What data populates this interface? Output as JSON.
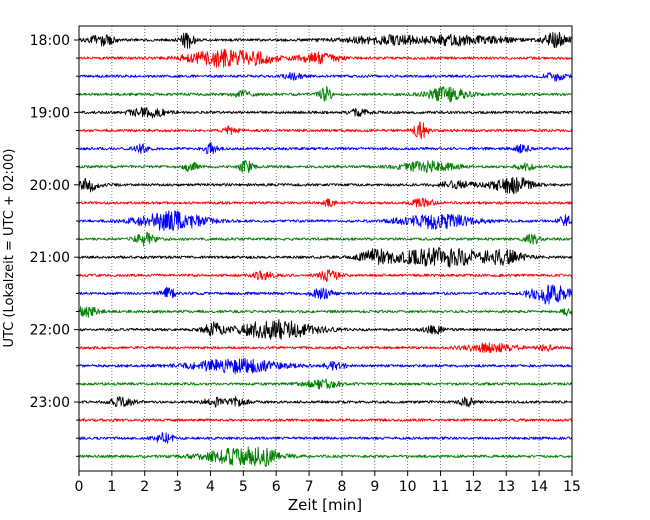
{
  "chart_data": {
    "type": "line",
    "title": "",
    "xlabel": "Zeit  [min]",
    "ylabel": "UTC (Lokalzeit = UTC + 02:00)",
    "xlim": [
      0,
      15
    ],
    "x_ticks": [
      "0",
      "1",
      "2",
      "3",
      "4",
      "5",
      "6",
      "7",
      "8",
      "9",
      "10",
      "11",
      "12",
      "13",
      "14",
      "15"
    ],
    "y_tick_labels": [
      "18:00",
      "19:00",
      "20:00",
      "21:00",
      "22:00",
      "23:00"
    ],
    "grid": "vertical dotted at each minute",
    "colors": [
      "#000000",
      "#ff0000",
      "#0000ff",
      "#008000"
    ],
    "trace_interval_min": 15,
    "traces": [
      {
        "start": "18:00",
        "color": "#000000",
        "bursts": [
          [
            0.7,
            0.4,
            5
          ],
          [
            3.3,
            0.2,
            8
          ],
          [
            9.5,
            1.5,
            4
          ],
          [
            11.3,
            0.6,
            4
          ],
          [
            12.5,
            0.8,
            3
          ],
          [
            14.5,
            0.4,
            7
          ]
        ]
      },
      {
        "start": "18:15",
        "color": "#ff0000",
        "bursts": [
          [
            4.3,
            1.0,
            8
          ],
          [
            5.5,
            0.6,
            4
          ],
          [
            7.3,
            0.6,
            5
          ]
        ]
      },
      {
        "start": "18:30",
        "color": "#0000ff",
        "bursts": [
          [
            6.5,
            0.3,
            3
          ],
          [
            14.5,
            0.3,
            4
          ]
        ]
      },
      {
        "start": "18:45",
        "color": "#008000",
        "bursts": [
          [
            5.0,
            0.3,
            3
          ],
          [
            7.5,
            0.2,
            7
          ],
          [
            11.2,
            0.6,
            7
          ]
        ]
      },
      {
        "start": "19:00",
        "color": "#000000",
        "bursts": [
          [
            2.1,
            0.5,
            5
          ],
          [
            8.5,
            0.3,
            3
          ]
        ]
      },
      {
        "start": "19:15",
        "color": "#ff0000",
        "bursts": [
          [
            4.6,
            0.2,
            4
          ],
          [
            10.4,
            0.2,
            8
          ]
        ]
      },
      {
        "start": "19:30",
        "color": "#0000ff",
        "bursts": [
          [
            1.9,
            0.2,
            4
          ],
          [
            4.0,
            0.2,
            5
          ],
          [
            13.5,
            0.2,
            4
          ]
        ]
      },
      {
        "start": "19:45",
        "color": "#008000",
        "bursts": [
          [
            3.4,
            0.2,
            5
          ],
          [
            5.1,
            0.2,
            7
          ],
          [
            10.6,
            0.8,
            5
          ],
          [
            13.6,
            0.3,
            3
          ]
        ]
      },
      {
        "start": "20:00",
        "color": "#000000",
        "bursts": [
          [
            0.3,
            0.3,
            6
          ],
          [
            11.5,
            0.6,
            3
          ],
          [
            13.2,
            0.6,
            8
          ]
        ]
      },
      {
        "start": "20:15",
        "color": "#ff0000",
        "bursts": [
          [
            7.6,
            0.2,
            3
          ],
          [
            10.5,
            0.3,
            6
          ]
        ]
      },
      {
        "start": "20:30",
        "color": "#0000ff",
        "bursts": [
          [
            2.8,
            1.0,
            9
          ],
          [
            10.9,
            1.1,
            7
          ],
          [
            14.8,
            0.2,
            5
          ]
        ]
      },
      {
        "start": "20:45",
        "color": "#008000",
        "bursts": [
          [
            2.0,
            0.3,
            6
          ],
          [
            13.8,
            0.3,
            4
          ]
        ]
      },
      {
        "start": "21:00",
        "color": "#000000",
        "bursts": [
          [
            9.0,
            0.4,
            6
          ],
          [
            11.0,
            1.6,
            9
          ],
          [
            13.0,
            0.5,
            5
          ]
        ]
      },
      {
        "start": "21:15",
        "color": "#ff0000",
        "bursts": [
          [
            5.6,
            0.3,
            4
          ],
          [
            7.6,
            0.3,
            5
          ]
        ]
      },
      {
        "start": "21:30",
        "color": "#0000ff",
        "bursts": [
          [
            2.7,
            0.2,
            7
          ],
          [
            7.4,
            0.3,
            5
          ],
          [
            14.3,
            0.6,
            10
          ]
        ]
      },
      {
        "start": "21:45",
        "color": "#008000",
        "bursts": [
          [
            0.2,
            0.4,
            5
          ],
          [
            14.9,
            0.2,
            4
          ]
        ]
      },
      {
        "start": "22:00",
        "color": "#000000",
        "bursts": [
          [
            4.1,
            0.3,
            6
          ],
          [
            6.0,
            1.2,
            9
          ],
          [
            10.8,
            0.3,
            4
          ]
        ]
      },
      {
        "start": "22:15",
        "color": "#ff0000",
        "bursts": [
          [
            12.5,
            0.8,
            4
          ],
          [
            14.2,
            0.2,
            3
          ]
        ]
      },
      {
        "start": "22:30",
        "color": "#0000ff",
        "bursts": [
          [
            4.8,
            1.3,
            7
          ],
          [
            7.8,
            0.3,
            4
          ]
        ]
      },
      {
        "start": "22:45",
        "color": "#008000",
        "bursts": [
          [
            7.4,
            0.6,
            4
          ]
        ]
      },
      {
        "start": "23:00",
        "color": "#000000",
        "bursts": [
          [
            1.3,
            0.4,
            4
          ],
          [
            4.1,
            0.3,
            4
          ],
          [
            4.8,
            0.3,
            4
          ],
          [
            11.8,
            0.2,
            5
          ]
        ]
      },
      {
        "start": "23:15",
        "color": "#ff0000",
        "bursts": []
      },
      {
        "start": "23:30",
        "color": "#0000ff",
        "bursts": [
          [
            2.6,
            0.3,
            5
          ]
        ]
      },
      {
        "start": "23:45",
        "color": "#008000",
        "bursts": [
          [
            4.9,
            1.1,
            8
          ],
          [
            5.7,
            0.4,
            4
          ]
        ]
      }
    ]
  }
}
